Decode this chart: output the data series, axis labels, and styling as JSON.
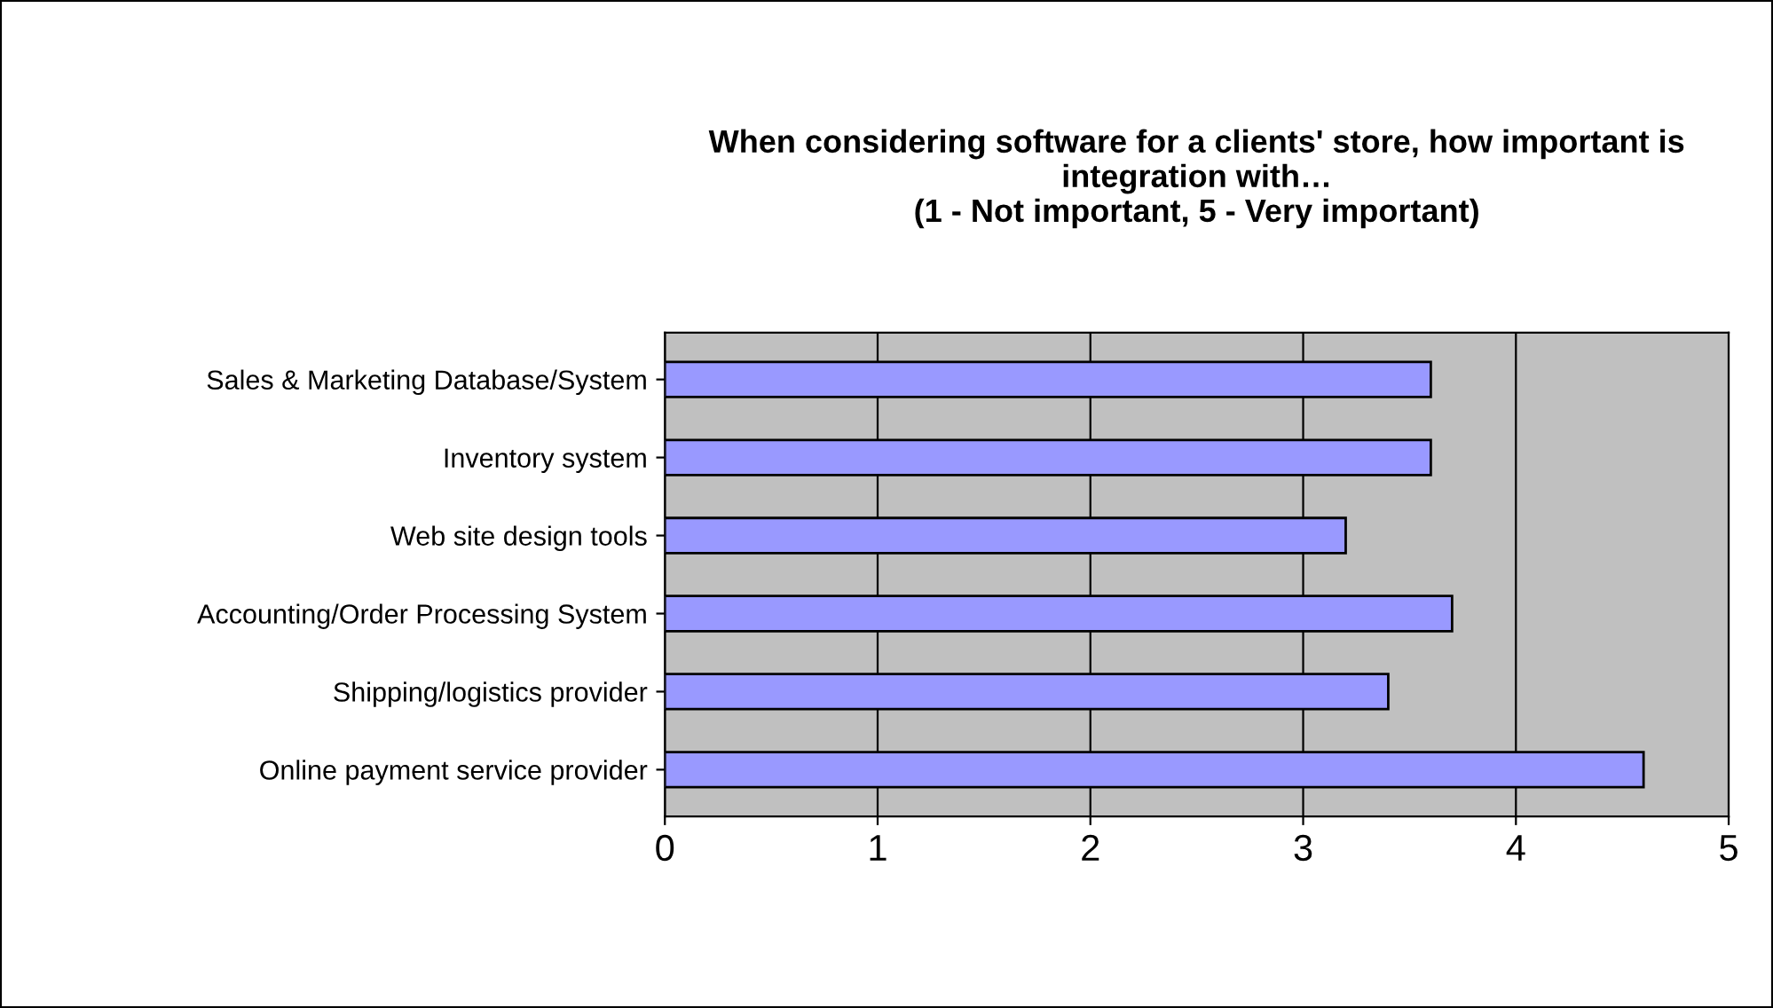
{
  "chart_data": {
    "type": "bar",
    "orientation": "horizontal",
    "title": "When considering software for a clients' store, how important is\nintegration with…\n(1 - Not important, 5 - Very important)",
    "categories": [
      "Sales & Marketing Database/System",
      "Inventory system",
      "Web site design tools",
      "Accounting/Order Processing System",
      "Shipping/logistics provider",
      "Online payment service provider"
    ],
    "values": [
      3.6,
      3.6,
      3.2,
      3.7,
      3.4,
      4.6
    ],
    "color": "#9999ff",
    "xlim": [
      0,
      5
    ],
    "xticks": [
      0,
      1,
      2,
      3,
      4,
      5
    ],
    "grid": "x"
  }
}
